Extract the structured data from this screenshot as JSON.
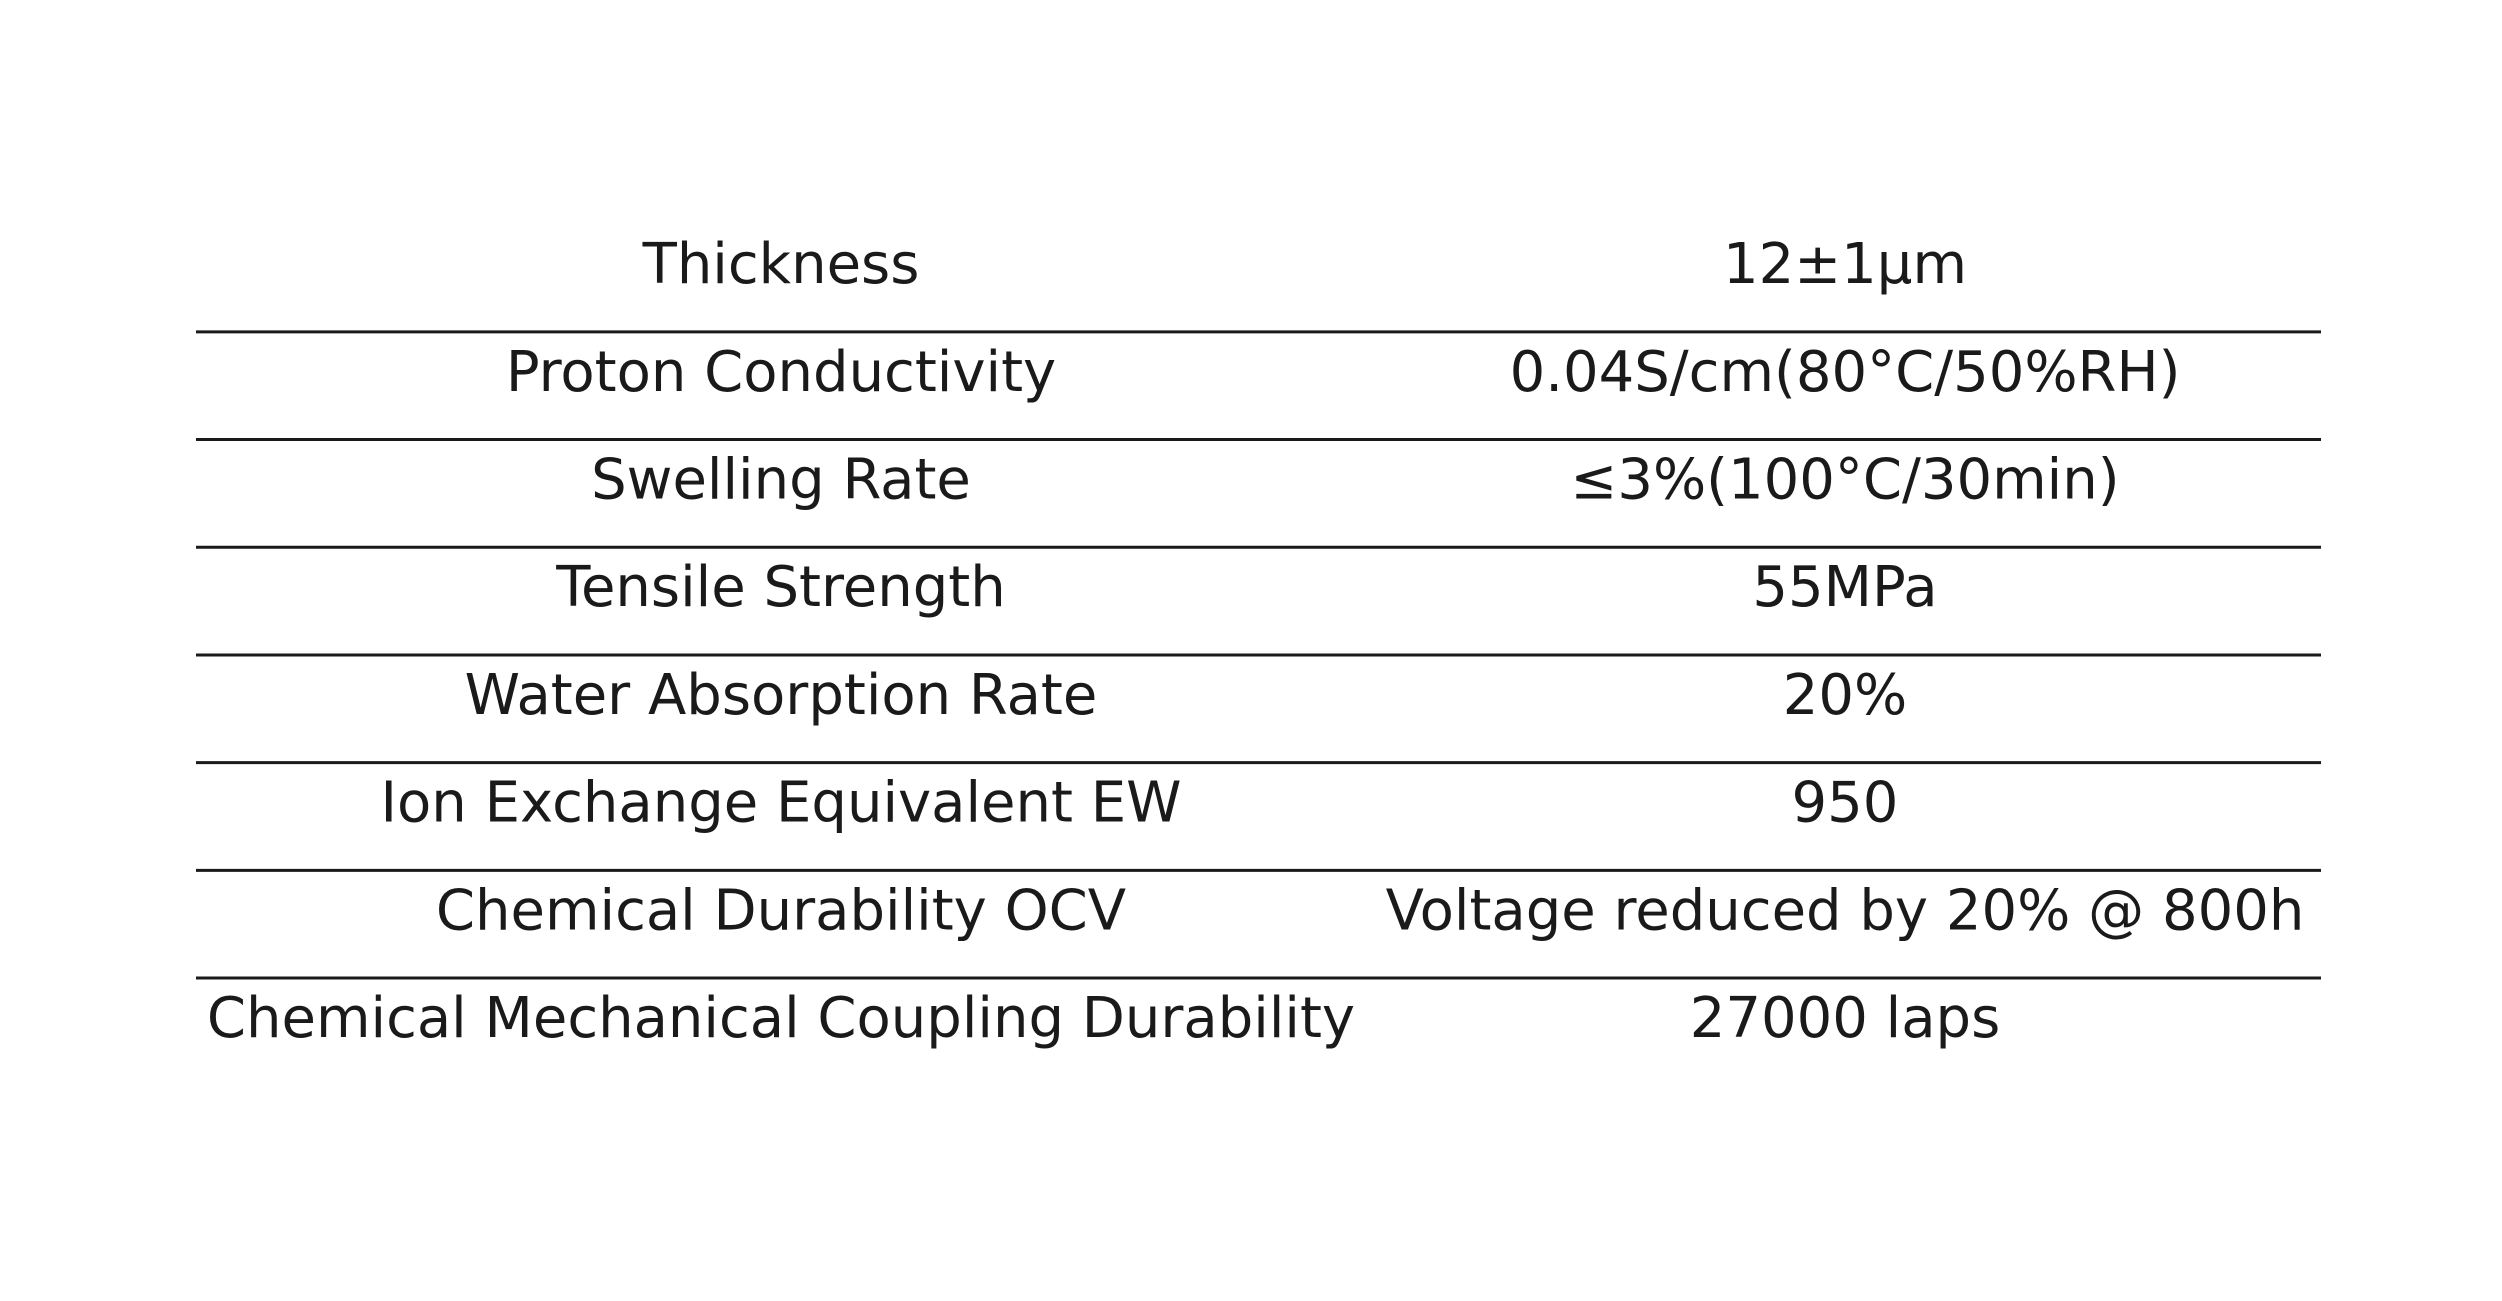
{
  "table": {
    "rows": [
      [
        "Thickness",
        "12±1μm"
      ],
      [
        "Proton Conductivity",
        "0.04S/cm(80°C/50%RH)"
      ],
      [
        "Swelling Rate",
        "≤3%(100°C/30min)"
      ],
      [
        "Tensile Strength",
        "55MPa"
      ],
      [
        "Water Absorption Rate",
        "20%"
      ],
      [
        "Ion Exchange Equivalent EW",
        "950"
      ],
      [
        "Chemical Durability OCV",
        "Voltage reduced by 20% @ 800h"
      ],
      [
        "Chemical Mechanical Coupling Durability",
        "27000 laps"
      ]
    ]
  }
}
